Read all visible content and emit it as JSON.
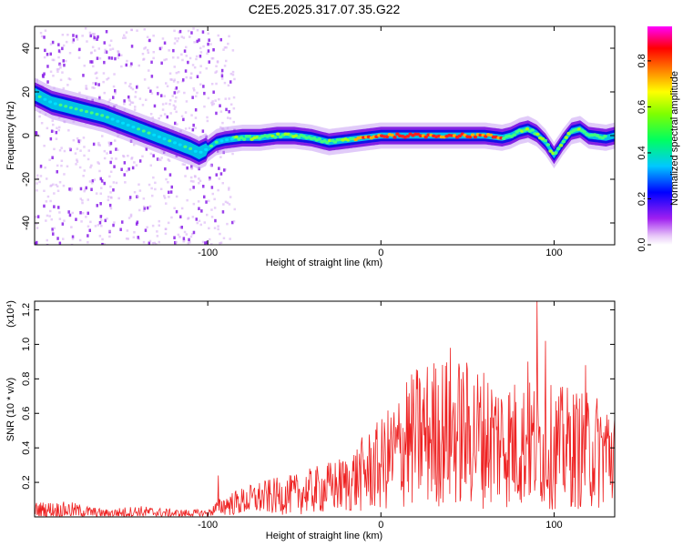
{
  "chart_data": [
    {
      "type": "heatmap",
      "title": "C2E5.2025.317.07.35.G22",
      "xlabel": "Height of straight line (km)",
      "ylabel": "Frequency (Hz)",
      "xlim": [
        -200,
        135
      ],
      "ylim": [
        -50,
        50
      ],
      "xticks": [
        -100,
        0,
        100
      ],
      "xtick_labels": [
        "-100",
        "0",
        "100"
      ],
      "yticks": [
        -40,
        -20,
        0,
        20,
        40
      ],
      "ytick_labels": [
        "-40",
        "-20",
        "0",
        "20",
        "40"
      ],
      "ridge_x": [
        -200,
        -190,
        -180,
        -170,
        -160,
        -150,
        -140,
        -130,
        -120,
        -110,
        -105,
        -100,
        -95,
        -90,
        -80,
        -70,
        -60,
        -50,
        -40,
        -30,
        -20,
        -10,
        0,
        10,
        20,
        30,
        40,
        50,
        60,
        70,
        75,
        80,
        85,
        90,
        95,
        100,
        105,
        110,
        115,
        120,
        130,
        135
      ],
      "ridge_freq": [
        19,
        15,
        13,
        11,
        9,
        6,
        3,
        0,
        -3,
        -6,
        -8,
        -6,
        -3,
        -2,
        -1,
        -1,
        0,
        0,
        -1,
        -3,
        -2,
        -1,
        0,
        0,
        0,
        0,
        0,
        0,
        0,
        -1,
        0,
        2,
        3,
        1,
        -3,
        -9,
        -3,
        2,
        3,
        0,
        -1,
        0
      ],
      "scatter_x_range": [
        -200,
        -85
      ],
      "colorbar": {
        "label": "Normalized spectral amplitude",
        "range": [
          0,
          0.95
        ],
        "ticks": [
          0.0,
          0.2,
          0.4,
          0.6,
          0.8
        ],
        "tick_labels": [
          "0.0",
          "0.2",
          "0.4",
          "0.6",
          "0.8"
        ],
        "colors": [
          "#ffffff",
          "#a020f0",
          "#0000ff",
          "#00ffff",
          "#00ff00",
          "#ffff00",
          "#ff8000",
          "#ff0000",
          "#ff00ff"
        ]
      }
    },
    {
      "type": "line",
      "xlabel": "Height of straight line (km)",
      "ylabel": "SNR (10 * v/v)",
      "scale_label": "(x10⁴)",
      "xlim": [
        -200,
        135
      ],
      "ylim": [
        0,
        1.25
      ],
      "xticks": [
        -100,
        0,
        100
      ],
      "xtick_labels": [
        "-100",
        "0",
        "100"
      ],
      "yticks": [
        0.2,
        0.4,
        0.6,
        0.8,
        1.0,
        1.2
      ],
      "ytick_labels": [
        "0.2",
        "0.4",
        "0.6",
        "0.8",
        "1.0",
        "1.2"
      ],
      "line_color": "#ee2222",
      "trend_x": [
        -200,
        -180,
        -160,
        -140,
        -120,
        -100,
        -95,
        -90,
        -80,
        -70,
        -60,
        -50,
        -40,
        -30,
        -20,
        -10,
        0,
        10,
        20,
        30,
        40,
        50,
        60,
        70,
        80,
        90,
        100,
        110,
        120,
        135
      ],
      "trend_y": [
        0.04,
        0.04,
        0.02,
        0.03,
        0.02,
        0.02,
        0.05,
        0.07,
        0.09,
        0.11,
        0.12,
        0.13,
        0.15,
        0.17,
        0.19,
        0.25,
        0.3,
        0.38,
        0.46,
        0.49,
        0.5,
        0.48,
        0.46,
        0.44,
        0.42,
        0.42,
        0.4,
        0.4,
        0.38,
        0.38
      ],
      "peaks": [
        {
          "x": -94,
          "y": 0.24
        },
        {
          "x": 15,
          "y": 0.78
        },
        {
          "x": 40,
          "y": 0.98
        },
        {
          "x": 85,
          "y": 0.9
        },
        {
          "x": 90,
          "y": 1.25
        },
        {
          "x": 95,
          "y": 1.02
        },
        {
          "x": 118,
          "y": 0.88
        }
      ]
    }
  ]
}
